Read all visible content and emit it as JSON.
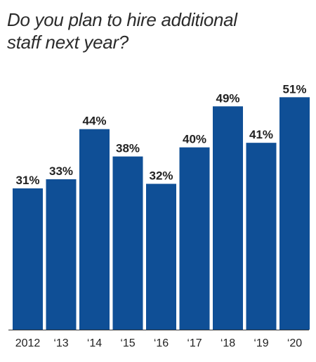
{
  "title": {
    "line1": "Do you plan to hire additional",
    "line2": "staff next year?"
  },
  "colors": {
    "bar": "#0f4f96",
    "axis": "#333333",
    "text": "#222222"
  },
  "chart_data": {
    "type": "bar",
    "title": "Do you plan to hire additional staff next year?",
    "categories": [
      "2012",
      "‘13",
      "‘14",
      "‘15",
      "‘16",
      "‘17",
      "‘18",
      "‘19",
      "‘20"
    ],
    "values": [
      31,
      33,
      44,
      38,
      32,
      40,
      49,
      41,
      51
    ],
    "data_labels": [
      "31%",
      "33%",
      "44%",
      "38%",
      "32%",
      "40%",
      "49%",
      "41%",
      "51%"
    ],
    "ylim": [
      0,
      60
    ],
    "grid": false,
    "legend": "none"
  }
}
